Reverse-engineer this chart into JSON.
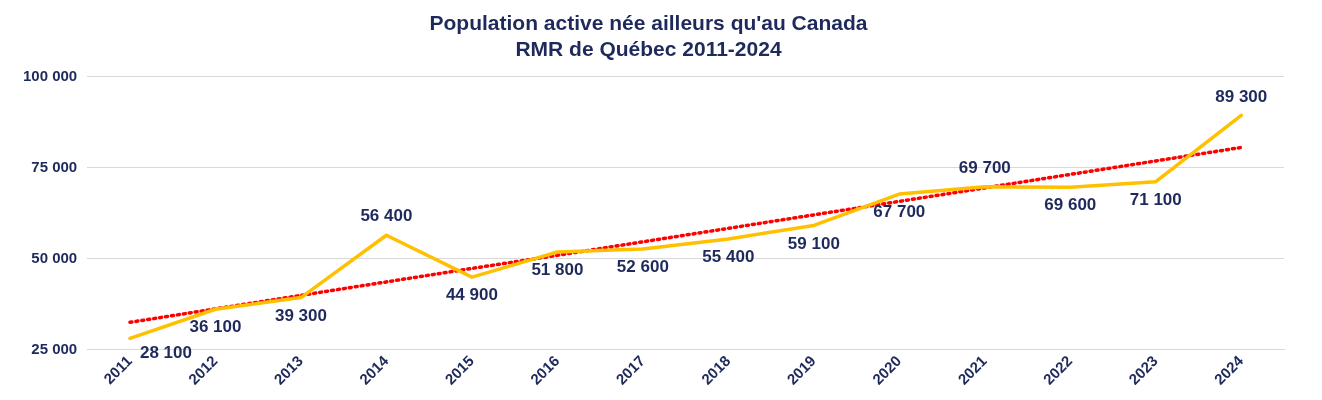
{
  "chart_data": {
    "type": "line",
    "title": "Population active née ailleurs qu'au Canada\nRMR de Québec 2011-2024",
    "categories": [
      "2011",
      "2012",
      "2013",
      "2014",
      "2015",
      "2016",
      "2017",
      "2018",
      "2019",
      "2020",
      "2021",
      "2022",
      "2023",
      "2024"
    ],
    "series": [
      {
        "color": "#ffc000",
        "values": [
          28100,
          36100,
          39300,
          56400,
          44900,
          51800,
          52600,
          55400,
          59100,
          67700,
          69700,
          69600,
          71100,
          89300
        ],
        "value_labels": [
          "28 100",
          "36 100",
          "39 300",
          "56 400",
          "44 900",
          "51 800",
          "52 600",
          "55 400",
          "59 100",
          "67 700",
          "69 700",
          "69 600",
          "71 100",
          "89 300"
        ]
      },
      {
        "type": "line",
        "color": "#ff0000",
        "line_style": "dotted",
        "values": [
          32500,
          36200,
          39900,
          43600,
          47300,
          50900,
          54600,
          58300,
          62000,
          65700,
          69400,
          73100,
          76800,
          80500
        ]
      }
    ],
    "ylim": [
      25000,
      100000
    ],
    "yticks": [
      {
        "value": 25000,
        "label": "25 000"
      },
      {
        "value": 50000,
        "label": "50 000"
      },
      {
        "value": 75000,
        "label": "75 000"
      },
      {
        "value": 100000,
        "label": "100 000"
      }
    ],
    "grid": "y",
    "legend": false,
    "marker": "none",
    "line_style": "solid"
  }
}
